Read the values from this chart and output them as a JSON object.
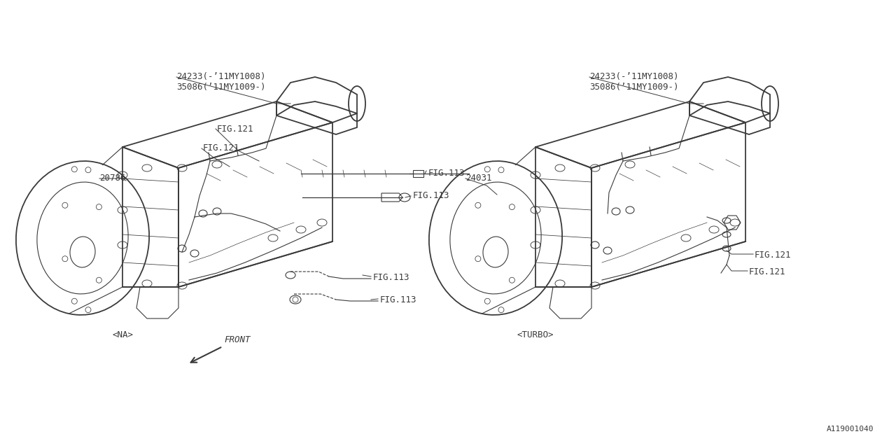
{
  "fig_width": 12.8,
  "fig_height": 6.4,
  "dpi": 100,
  "bg_color": "#ffffff",
  "line_color": "#3a3a3a",
  "diagram_id": "A119001040",
  "na_label": "<NA>",
  "turbo_label": "<TURBO>",
  "front_label": "FRONT",
  "part_24233_l": "24233(-’11MY1008)",
  "part_35086_l": "35086(’11MY1009-)",
  "part_24233_r": "24233(-’11MY1008)",
  "part_35086_r": "35086(’11MY1009-)",
  "part_20786": "20786",
  "part_24031": "24031",
  "fig121": "FIG.121",
  "fig113": "FIG.113",
  "font_family": "monospace",
  "font_size_parts": 9,
  "font_size_fig": 9,
  "font_size_label": 9,
  "font_size_id": 8,
  "lw_body": 1.3,
  "lw_detail": 0.8,
  "lw_wire": 0.8,
  "lw_leader": 0.7
}
